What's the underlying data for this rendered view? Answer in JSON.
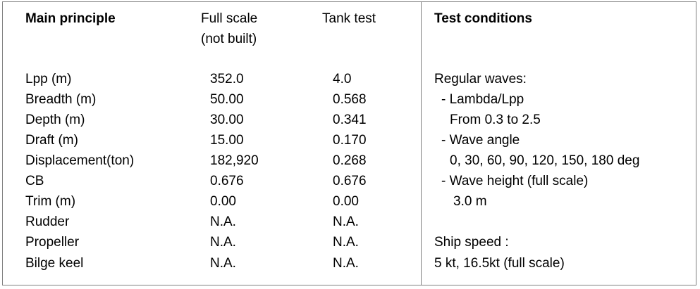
{
  "headers": {
    "main_principle": "Main principle",
    "full_scale_line1": "Full scale",
    "full_scale_line2": "(not built)",
    "tank_test": "Tank test",
    "test_conditions": "Test conditions"
  },
  "rows": [
    {
      "label": "Lpp (m)",
      "full_scale": "352.0",
      "tank_test": "4.0"
    },
    {
      "label": "Breadth (m)",
      "full_scale": "50.00",
      "tank_test": "0.568"
    },
    {
      "label": "Depth (m)",
      "full_scale": "30.00",
      "tank_test": "0.341"
    },
    {
      "label": "Draft (m)",
      "full_scale": "15.00",
      "tank_test": "0.170"
    },
    {
      "label": "Displacement(ton)",
      "full_scale": "182,920",
      "tank_test": "0.268"
    },
    {
      "label": "CB",
      "full_scale": "0.676",
      "tank_test": "0.676"
    },
    {
      "label": "Trim (m)",
      "full_scale": "0.00",
      "tank_test": "0.00"
    },
    {
      "label": "Rudder",
      "full_scale": "N.A.",
      "tank_test": "N.A."
    },
    {
      "label": "Propeller",
      "full_scale": "N.A.",
      "tank_test": "N.A."
    },
    {
      "label": "Bilge keel",
      "full_scale": "N.A.",
      "tank_test": "N.A."
    }
  ],
  "conditions": [
    "Regular waves:",
    "- Lambda/Lpp",
    "From 0.3 to 2.5",
    "- Wave angle",
    "0, 30, 60, 90, 120, 150, 180 deg",
    "- Wave height (full scale)",
    "3.0 m",
    "",
    "Ship speed :",
    "5 kt, 16.5kt (full scale)"
  ]
}
